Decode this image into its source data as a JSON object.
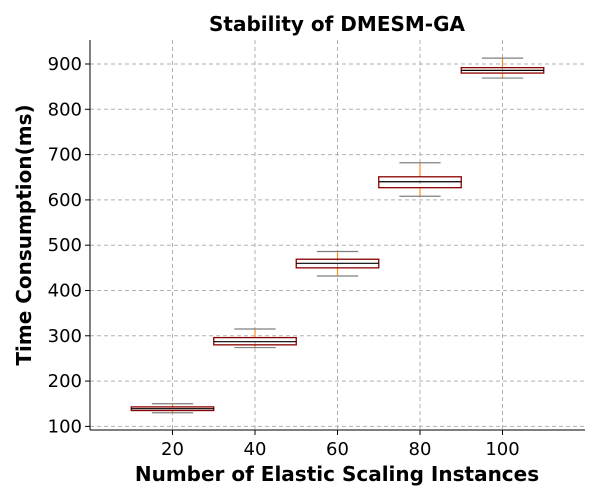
{
  "chart_data": {
    "type": "box",
    "title": "Stability of DMESM-GA",
    "xlabel": "Number of Elastic Scaling Instances",
    "ylabel": "Time Consumption(ms)",
    "categories": [
      "20",
      "40",
      "60",
      "80",
      "100"
    ],
    "x": [
      20,
      40,
      60,
      80,
      100
    ],
    "boxes": [
      {
        "x": 20,
        "whisker_low": 130,
        "q1": 135,
        "median": 139,
        "q3": 143,
        "whisker_high": 150
      },
      {
        "x": 40,
        "whisker_low": 274,
        "q1": 280,
        "median": 287,
        "q3": 296,
        "whisker_high": 315
      },
      {
        "x": 60,
        "whisker_low": 432,
        "q1": 450,
        "median": 460,
        "q3": 469,
        "whisker_high": 486
      },
      {
        "x": 80,
        "whisker_low": 608,
        "q1": 627,
        "median": 640,
        "q3": 651,
        "whisker_high": 682
      },
      {
        "x": 100,
        "whisker_low": 869,
        "q1": 880,
        "median": 886,
        "q3": 892,
        "whisker_high": 913
      }
    ],
    "xlim": [
      0,
      120
    ],
    "ylim": [
      92,
      953
    ],
    "yticks": [
      100,
      200,
      300,
      400,
      500,
      600,
      700,
      800,
      900
    ],
    "xticks": [
      20,
      40,
      60,
      80,
      100
    ],
    "grid": true,
    "colors": {
      "box": "#8b0000",
      "median": "#000000",
      "whisker": "#ff8c1a",
      "cap": "#7f7f7f",
      "grid": "#b0b0b0"
    }
  }
}
